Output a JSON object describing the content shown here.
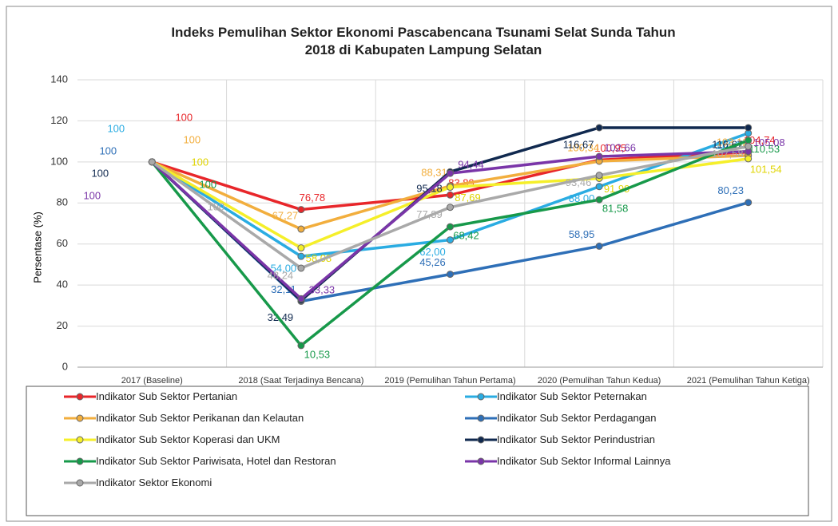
{
  "chart_data": {
    "type": "line",
    "title": "Indeks Pemulihan Sektor Ekonomi Pascabencana Tsunami Selat Sunda Tahun 2018 di Kabupaten Lampung Selatan",
    "y_label": "Persentase (%)",
    "categories": [
      "2017 (Baseline)",
      "2018 (Saat Terjadinya Bencana)",
      "2019 (Pemulihan Tahun Pertama)",
      "2020 (Pemulihan Tahun Kedua)",
      "2021 (Pemulihan Tahun Ketiga)"
    ],
    "ylim": [
      0,
      140
    ],
    "yticks": [
      0,
      20,
      40,
      60,
      80,
      100,
      120,
      140
    ],
    "grid": true,
    "series": [
      {
        "name": "Indikator Sub Sektor Pertanian",
        "color": "#e8262a",
        "values": [
          100,
          76.78,
          83.89,
          100.95,
          104.74
        ],
        "value_labels": [
          "100",
          "76,78",
          "83,89",
          "100,95",
          "104,74"
        ]
      },
      {
        "name": "Indikator Sub Sektor Peternakan",
        "color": "#2aace2",
        "values": [
          100,
          54.0,
          62.0,
          88.0,
          114.0
        ],
        "value_labels": [
          "100",
          "54,00",
          "62,00",
          "88,00",
          "114,00"
        ]
      },
      {
        "name": "Indikator Sub Sektor Perikanan dan Kelautan",
        "color": "#f2ae3d",
        "values": [
          100,
          67.27,
          88.31,
          100.34,
          103.12
        ],
        "value_labels": [
          "100",
          "67,27",
          "88,31",
          "100,34",
          "103,12"
        ]
      },
      {
        "name": "Indikator Sub Sektor Perdagangan",
        "color": "#2e6fb7",
        "values": [
          100,
          32.11,
          45.26,
          58.95,
          80.23
        ],
        "value_labels": [
          "100",
          "32,11",
          "45,26",
          "58,95",
          "80,23"
        ]
      },
      {
        "name": "Indikator Sub Sektor Koperasi dan UKM",
        "color": "#f5ef2a",
        "values": [
          100,
          58.08,
          87.69,
          91.99,
          101.54
        ],
        "value_labels": [
          "100",
          "58,08",
          "87,69",
          "91,99",
          "101,54"
        ]
      },
      {
        "name": "Indikator Sub Sektor Perindustrian",
        "color": "#10294f",
        "values": [
          100,
          32.49,
          95.18,
          116.67,
          116.67
        ],
        "value_labels": [
          "100",
          "32,49",
          "95,18",
          "116,67",
          "116,67"
        ]
      },
      {
        "name": "Indikator Sub Sektor Pariwisata, Hotel dan Restoran",
        "color": "#17994a",
        "values": [
          100,
          10.53,
          68.42,
          81.58,
          110.53
        ],
        "value_labels": [
          "100",
          "10,53",
          "68,42",
          "81,58",
          "110,53"
        ]
      },
      {
        "name": "Indikator Sub Sektor Informal Lainnya",
        "color": "#7a35a8",
        "values": [
          100,
          33.33,
          94.44,
          102.66,
          105.08
        ],
        "value_labels": [
          "100",
          "33,33",
          "94,44",
          "102,66",
          "105,08"
        ]
      },
      {
        "name": "Indikator Sektor Ekonomi",
        "color": "#a9a9a9",
        "values": [
          100,
          48.24,
          77.89,
          93.46,
          107.58
        ],
        "value_labels": [
          "100",
          "48,24",
          "77,89",
          "93,46",
          "107,58"
        ]
      }
    ]
  }
}
